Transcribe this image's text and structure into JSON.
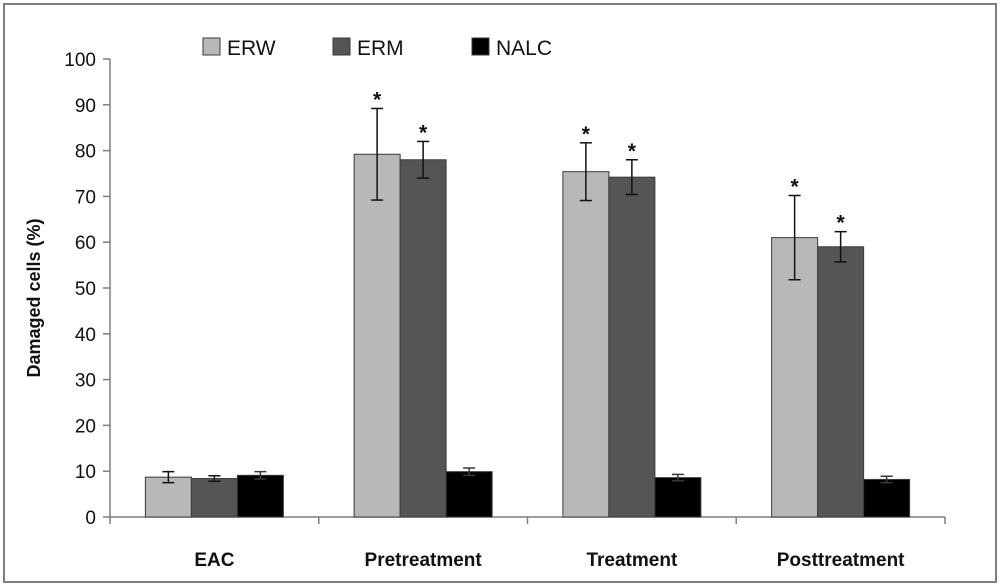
{
  "chart_data": {
    "type": "bar",
    "title": "",
    "xlabel": "",
    "ylabel": "Damaged cells (%)",
    "ylim": [
      0,
      100
    ],
    "yticks": [
      "0",
      "10",
      "20",
      "30",
      "40",
      "50",
      "60",
      "70",
      "80",
      "90",
      "100"
    ],
    "grid": false,
    "legend_position": "top",
    "categories": [
      "EAC",
      "Pretreatment",
      "Treatment",
      "Posttreatment"
    ],
    "series": [
      {
        "name": "ERW",
        "color": "#b8b8b8",
        "values": [
          8.7,
          79.2,
          75.4,
          61.0
        ],
        "errors": [
          1.2,
          10.0,
          6.3,
          9.2
        ],
        "significant": [
          false,
          true,
          true,
          true
        ]
      },
      {
        "name": "ERM",
        "color": "#555555",
        "values": [
          8.4,
          78.0,
          74.2,
          59.0
        ],
        "errors": [
          0.6,
          4.0,
          3.8,
          3.3
        ],
        "significant": [
          false,
          true,
          true,
          true
        ]
      },
      {
        "name": "NALC",
        "color": "#000000",
        "values": [
          9.1,
          9.9,
          8.6,
          8.2
        ],
        "errors": [
          0.8,
          0.8,
          0.7,
          0.7
        ],
        "significant": [
          false,
          false,
          false,
          false
        ]
      }
    ],
    "significance_marker": "*"
  }
}
